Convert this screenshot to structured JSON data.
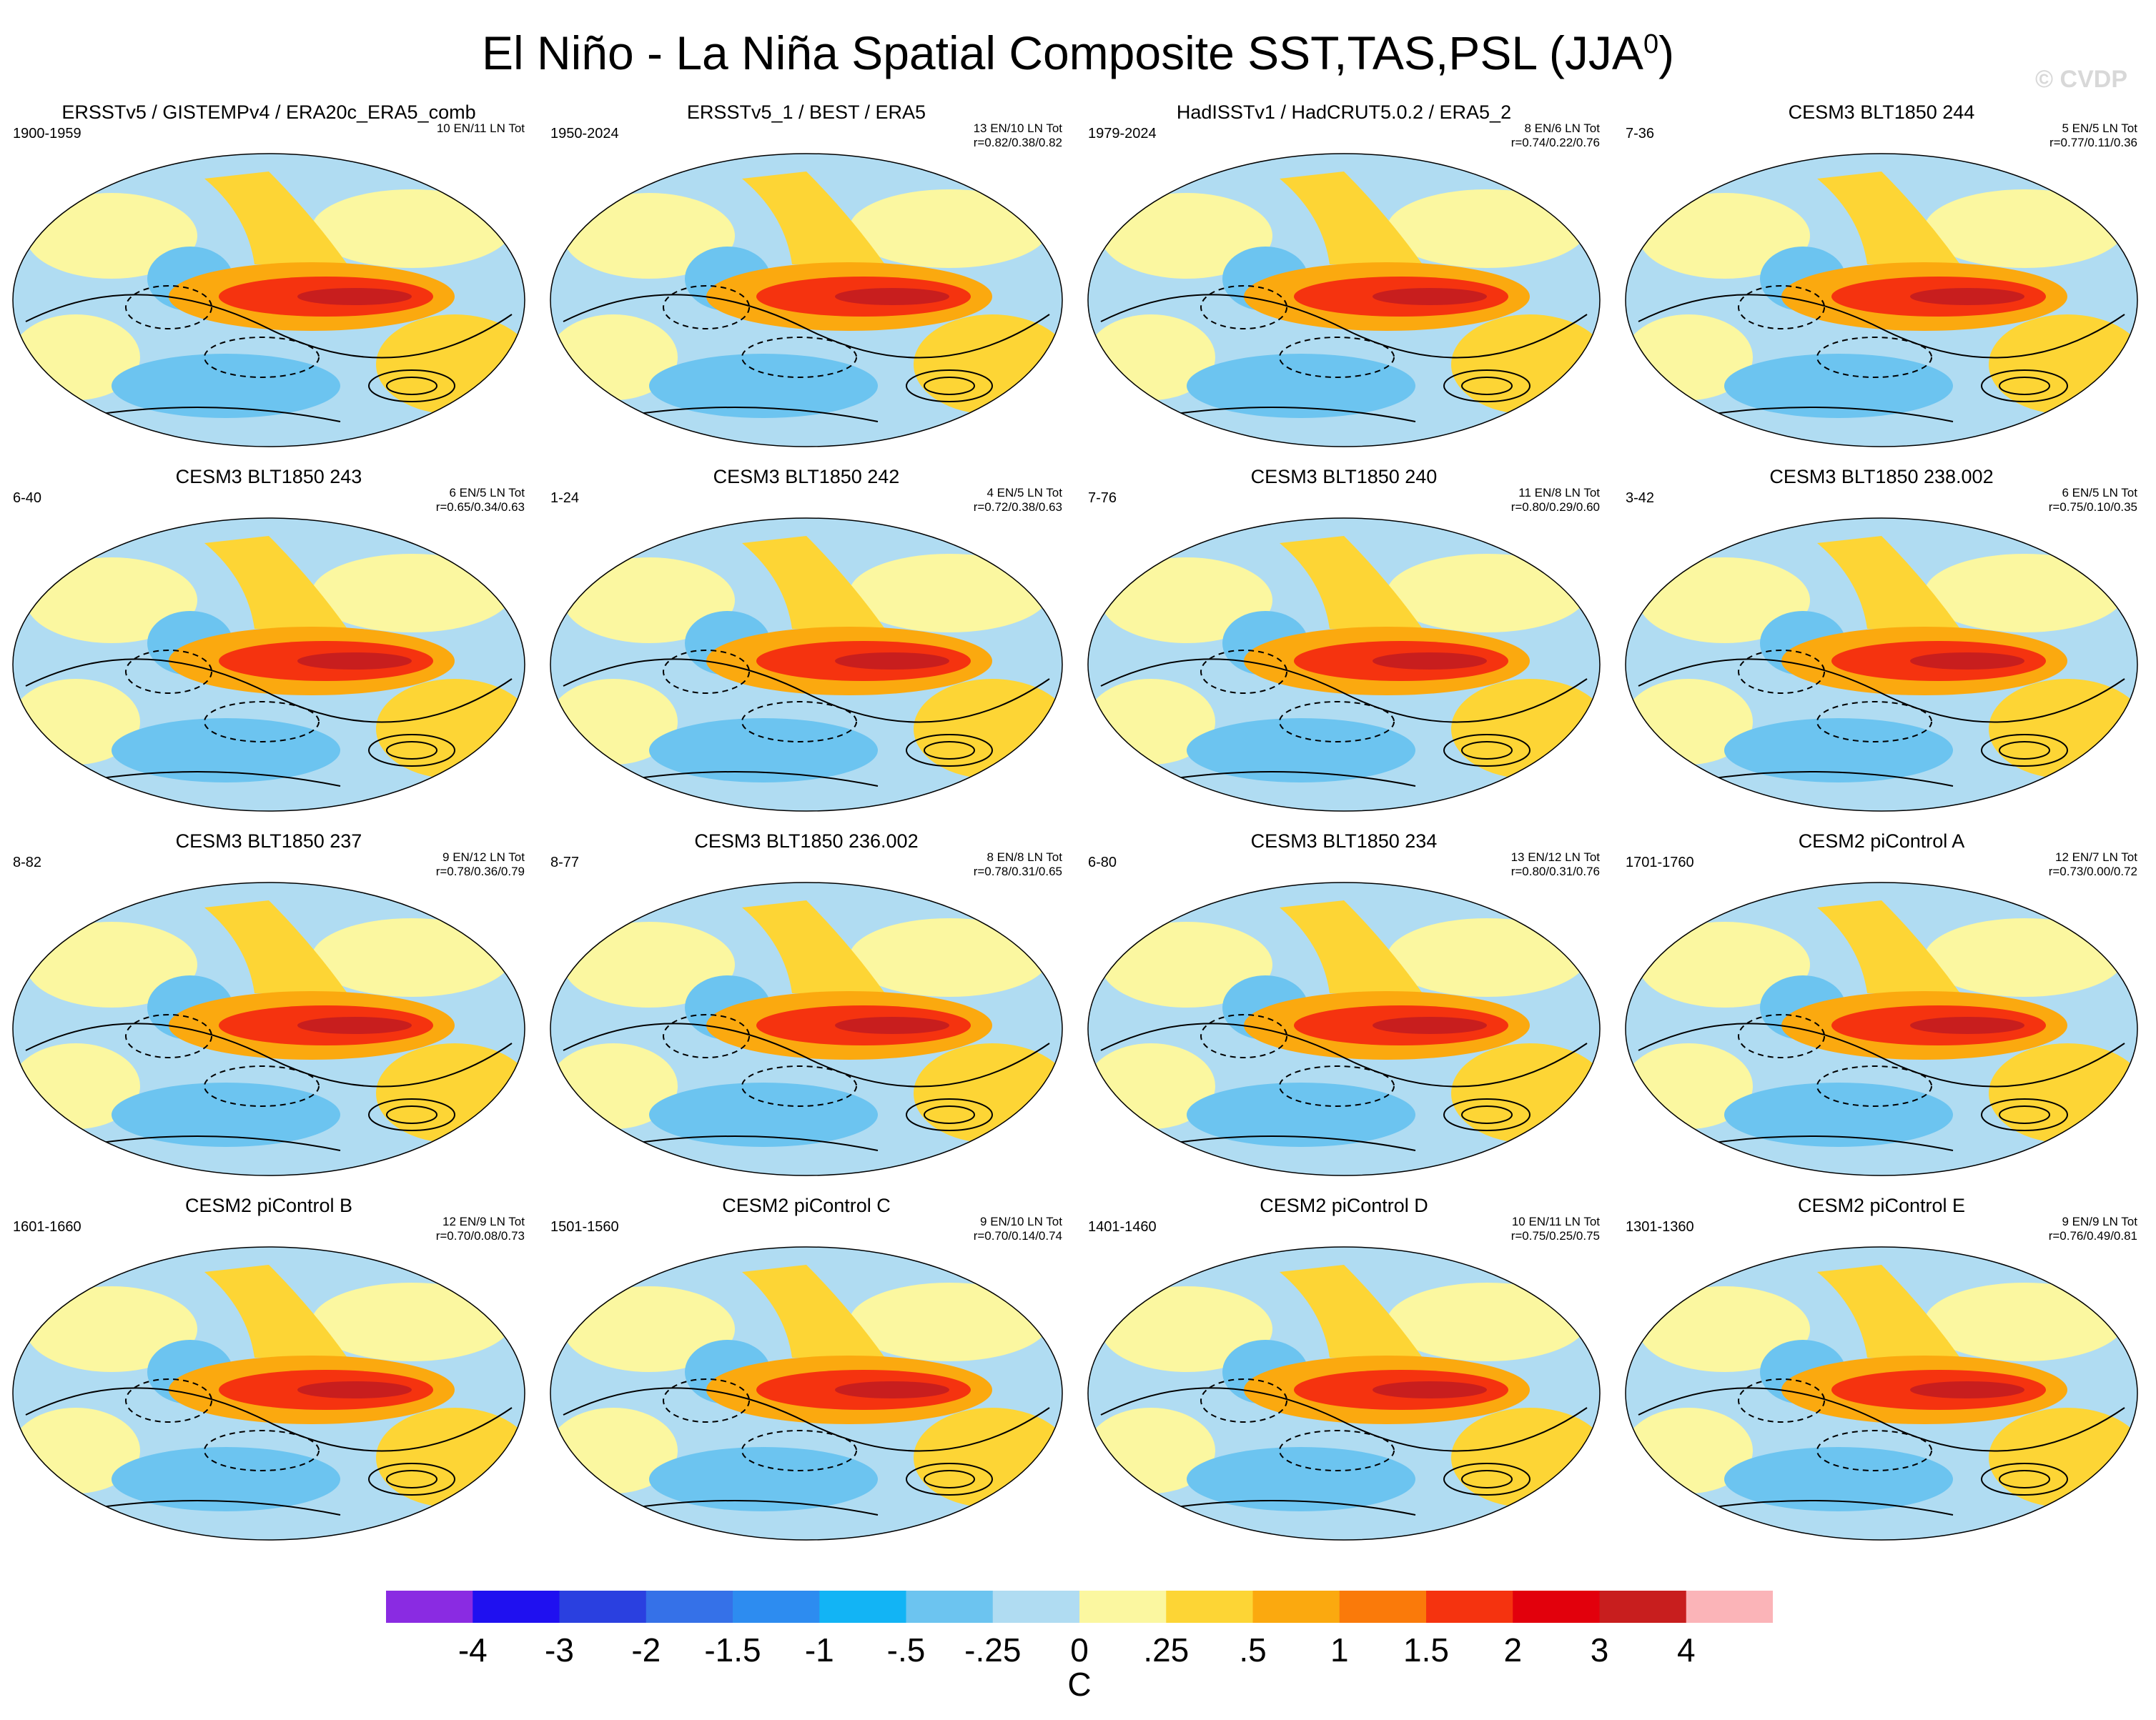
{
  "title": "El Niño - La Niña Spatial Composite SST,TAS,PSL (JJA",
  "title_sup": "0",
  "title_end": ")",
  "watermark": "© CVDP",
  "panels": [
    {
      "title": "ERSSTv5 / GISTEMPv4 / ERA20c_ERA5_comb",
      "years": "1900-1959",
      "stat1": "10 EN/11 LN Tot",
      "stat2": ""
    },
    {
      "title": "ERSSTv5_1 / BEST / ERA5",
      "years": "1950-2024",
      "stat1": "13 EN/10 LN Tot",
      "stat2": "r=0.82/0.38/0.82"
    },
    {
      "title": "HadISSTv1 / HadCRUT5.0.2 / ERA5_2",
      "years": "1979-2024",
      "stat1": "8 EN/6 LN Tot",
      "stat2": "r=0.74/0.22/0.76"
    },
    {
      "title": "CESM3 BLT1850 244",
      "years": "7-36",
      "stat1": "5 EN/5 LN Tot",
      "stat2": "r=0.77/0.11/0.36"
    },
    {
      "title": "CESM3 BLT1850 243",
      "years": "6-40",
      "stat1": "6 EN/5 LN Tot",
      "stat2": "r=0.65/0.34/0.63"
    },
    {
      "title": "CESM3 BLT1850 242",
      "years": "1-24",
      "stat1": "4 EN/5 LN Tot",
      "stat2": "r=0.72/0.38/0.63"
    },
    {
      "title": "CESM3 BLT1850 240",
      "years": "7-76",
      "stat1": "11 EN/8 LN Tot",
      "stat2": "r=0.80/0.29/0.60"
    },
    {
      "title": "CESM3 BLT1850 238.002",
      "years": "3-42",
      "stat1": "6 EN/5 LN Tot",
      "stat2": "r=0.75/0.10/0.35"
    },
    {
      "title": "CESM3 BLT1850 237",
      "years": "8-82",
      "stat1": "9 EN/12 LN Tot",
      "stat2": "r=0.78/0.36/0.79"
    },
    {
      "title": "CESM3 BLT1850 236.002",
      "years": "8-77",
      "stat1": "8 EN/8 LN Tot",
      "stat2": "r=0.78/0.31/0.65"
    },
    {
      "title": "CESM3 BLT1850 234",
      "years": "6-80",
      "stat1": "13 EN/12 LN Tot",
      "stat2": "r=0.80/0.31/0.76"
    },
    {
      "title": "CESM2 piControl A",
      "years": "1701-1760",
      "stat1": "12 EN/7 LN Tot",
      "stat2": "r=0.73/0.00/0.72"
    },
    {
      "title": "CESM2 piControl B",
      "years": "1601-1660",
      "stat1": "12 EN/9 LN Tot",
      "stat2": "r=0.70/0.08/0.73"
    },
    {
      "title": "CESM2 piControl C",
      "years": "1501-1560",
      "stat1": "9 EN/10 LN Tot",
      "stat2": "r=0.70/0.14/0.74"
    },
    {
      "title": "CESM2 piControl D",
      "years": "1401-1460",
      "stat1": "10 EN/11 LN Tot",
      "stat2": "r=0.75/0.25/0.75"
    },
    {
      "title": "CESM2 piControl E",
      "years": "1301-1360",
      "stat1": "9 EN/9 LN Tot",
      "stat2": "r=0.76/0.49/0.81"
    }
  ],
  "colorbar": {
    "colors": [
      "#8a2be2",
      "#1f10f0",
      "#2a40e0",
      "#3571e8",
      "#2d8cf0",
      "#12b4f5",
      "#6cc4f0",
      "#b0dcf2",
      "#fbf7a0",
      "#fdd535",
      "#fba90f",
      "#fa7a0a",
      "#f5330f",
      "#e2000c",
      "#c81e1e",
      "#fbb4b8"
    ],
    "labels": [
      "-4",
      "-3",
      "-2",
      "-1.5",
      "-1",
      "-.5",
      "-.25",
      "0",
      ".25",
      ".5",
      "1",
      "1.5",
      "2",
      "3",
      "4"
    ],
    "units": "C"
  }
}
